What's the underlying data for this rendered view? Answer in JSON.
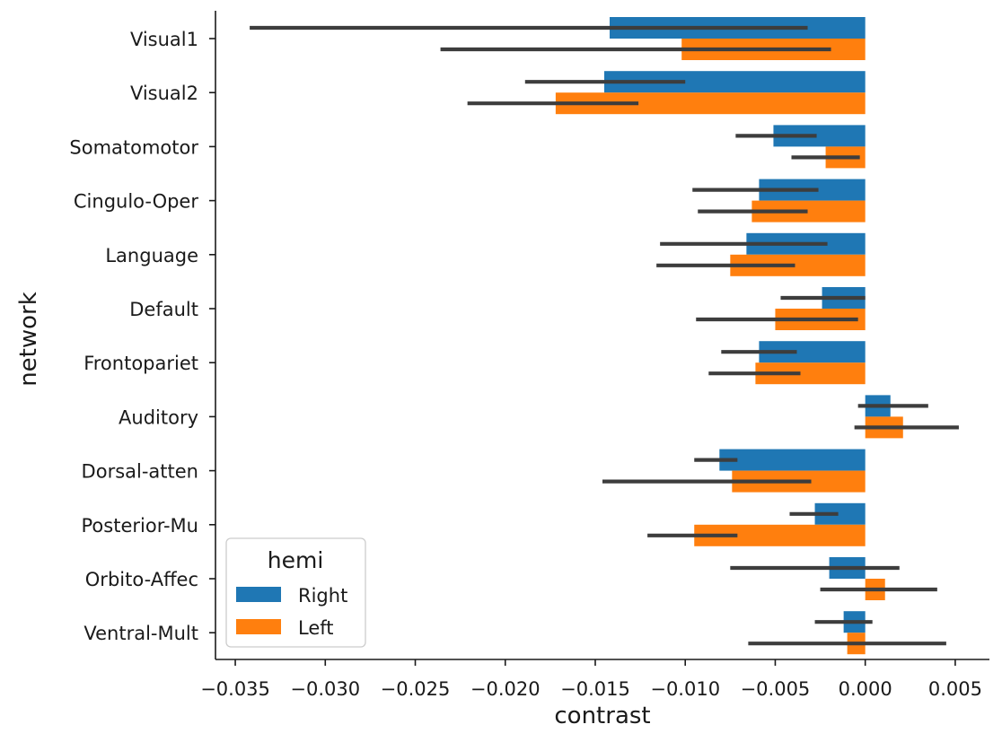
{
  "chart_data": {
    "type": "bar",
    "orientation": "horizontal",
    "xlabel": "contrast",
    "ylabel": "network",
    "xlim": [
      -0.0361,
      0.0069
    ],
    "xticks": [
      -0.035,
      -0.03,
      -0.025,
      -0.02,
      -0.015,
      -0.01,
      -0.005,
      0.0,
      0.005
    ],
    "xtick_labels": [
      "−0.035",
      "−0.030",
      "−0.025",
      "−0.020",
      "−0.015",
      "−0.010",
      "−0.005",
      "0.000",
      "0.005"
    ],
    "categories": [
      "Visual1",
      "Visual2",
      "Somatomotor",
      "Cingulo-Oper",
      "Language",
      "Default",
      "Frontopariet",
      "Auditory",
      "Dorsal-atten",
      "Posterior-Mu",
      "Orbito-Affec",
      "Ventral-Mult"
    ],
    "series": [
      {
        "name": "Right",
        "color": "#1f77b4",
        "values": [
          -0.0142,
          -0.0145,
          -0.0051,
          -0.0059,
          -0.0066,
          -0.0024,
          -0.0059,
          0.0014,
          -0.0081,
          -0.0028,
          -0.002,
          -0.0012
        ],
        "ci_low": [
          -0.0342,
          -0.0189,
          -0.0072,
          -0.0096,
          -0.0114,
          -0.0047,
          -0.008,
          -0.0004,
          -0.0095,
          -0.0042,
          -0.0075,
          -0.0028
        ],
        "ci_high": [
          -0.0032,
          -0.01,
          -0.0027,
          -0.0026,
          -0.0021,
          0.0,
          -0.0038,
          0.0035,
          -0.0071,
          -0.0015,
          0.0019,
          0.0004
        ]
      },
      {
        "name": "Left",
        "color": "#ff7f0e",
        "values": [
          -0.0102,
          -0.0172,
          -0.0022,
          -0.0063,
          -0.0075,
          -0.005,
          -0.0061,
          0.0021,
          -0.0074,
          -0.0095,
          0.0011,
          -0.001
        ],
        "ci_low": [
          -0.0236,
          -0.0221,
          -0.0041,
          -0.0093,
          -0.0116,
          -0.0094,
          -0.0087,
          -0.0006,
          -0.0146,
          -0.0121,
          -0.0025,
          -0.0065
        ],
        "ci_high": [
          -0.0019,
          -0.0126,
          -0.0003,
          -0.0032,
          -0.0039,
          -0.0004,
          -0.0036,
          0.0052,
          -0.003,
          -0.0071,
          0.004,
          0.0045
        ]
      }
    ],
    "legend": {
      "title": "hemi",
      "location": "lower-left"
    },
    "grid": false
  }
}
